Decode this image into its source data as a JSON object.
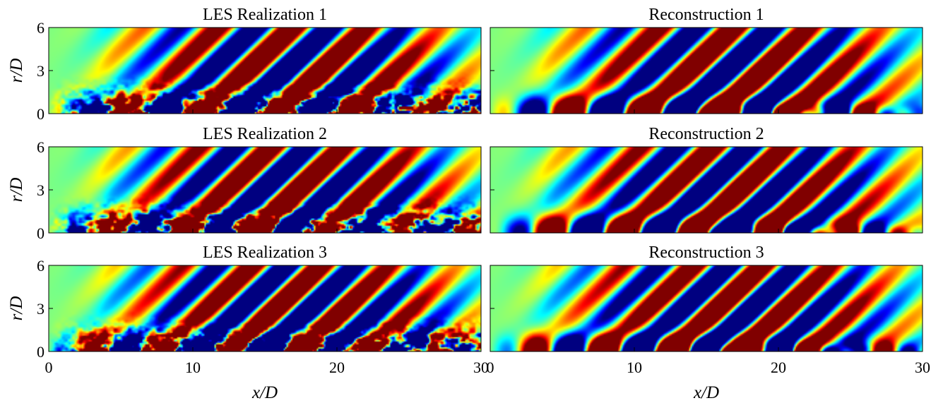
{
  "chart_data": {
    "type": "heatmap",
    "colormap": "jet",
    "xlabel": "x/D",
    "ylabel": "r/D",
    "xlim": [
      0,
      30
    ],
    "ylim": [
      0,
      6
    ],
    "xticks": [
      "0",
      "10",
      "20",
      "30"
    ],
    "yticks": [
      "0",
      "3",
      "6"
    ],
    "panels": [
      {
        "title": "LES Realization 1",
        "kind": "les",
        "seed": 1
      },
      {
        "title": "Reconstruction 1",
        "kind": "recon",
        "seed": 1
      },
      {
        "title": "LES Realization 2",
        "kind": "les",
        "seed": 2
      },
      {
        "title": "Reconstruction 2",
        "kind": "recon",
        "seed": 2
      },
      {
        "title": "LES Realization 3",
        "kind": "les",
        "seed": 3
      },
      {
        "title": "Reconstruction 3",
        "kind": "recon",
        "seed": 3
      }
    ]
  }
}
